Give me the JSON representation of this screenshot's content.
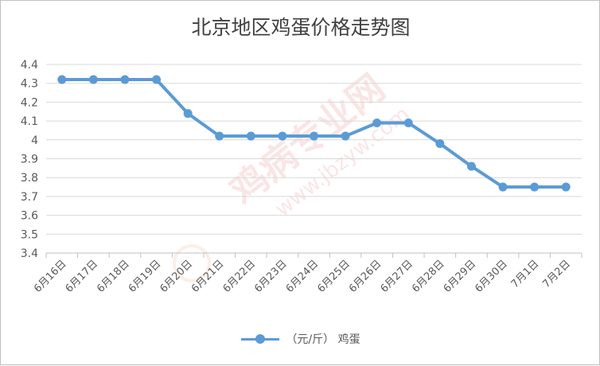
{
  "chart_data": {
    "type": "line",
    "title": "北京地区鸡蛋价格走势图",
    "xlabel": "",
    "ylabel": "",
    "ylim": [
      3.4,
      4.4
    ],
    "yticks": [
      "3.4",
      "3.5",
      "3.6",
      "3.7",
      "3.8",
      "3.9",
      "4",
      "4.1",
      "4.2",
      "4.3",
      "4.4"
    ],
    "categories": [
      "6月16日",
      "6月17日",
      "6月18日",
      "6月19日",
      "6月20日",
      "6月21日",
      "6月22日",
      "6月23日",
      "6月24日",
      "6月25日",
      "6月26日",
      "6月27日",
      "6月28日",
      "6月29日",
      "6月30日",
      "7月1日",
      "7月2日"
    ],
    "series": [
      {
        "name": "（元/斤） 鸡蛋",
        "values": [
          4.32,
          4.32,
          4.32,
          4.32,
          4.14,
          4.02,
          4.02,
          4.02,
          4.02,
          4.02,
          4.09,
          4.09,
          3.98,
          3.86,
          3.75,
          3.75,
          3.75
        ]
      }
    ],
    "grid": true,
    "legend": "bottom",
    "colors": {
      "series": "#5b9bd5",
      "grid": "#d9d9d9",
      "axis": "#bfbfbf"
    }
  },
  "watermark": "鸡病专业网 www.jbzyw.com"
}
